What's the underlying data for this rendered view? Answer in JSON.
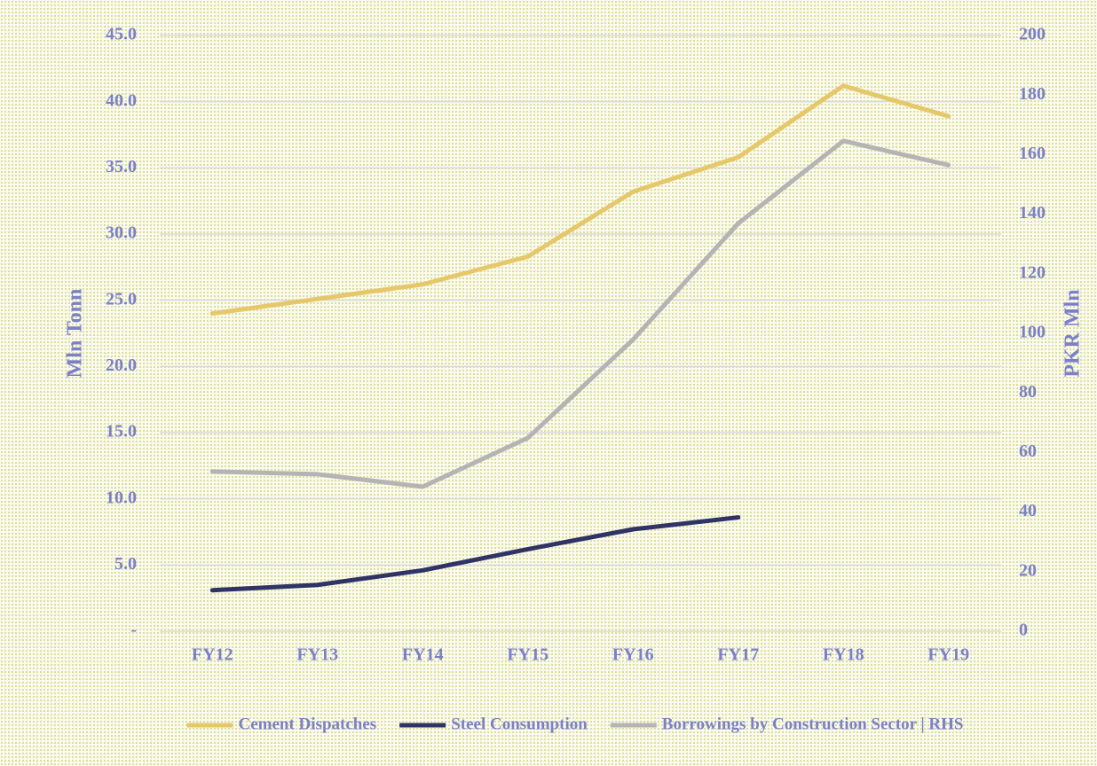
{
  "chart_data": {
    "type": "line",
    "categories": [
      "FY12",
      "FY13",
      "FY14",
      "FY15",
      "FY16",
      "FY17",
      "FY18",
      "FY19"
    ],
    "series": [
      {
        "name": "Cement Dispatches",
        "color": "#e6c86a",
        "values": [
          24.0,
          25.1,
          26.2,
          28.3,
          33.2,
          35.8,
          41.2,
          38.9
        ]
      },
      {
        "name": "Steel Consumption",
        "color": "#2f3366",
        "values": [
          3.1,
          3.5,
          4.6,
          6.2,
          7.7,
          8.6,
          null,
          null
        ]
      },
      {
        "name": "Borrowings by Construction Sector | RHS",
        "color": "#b4b4b4",
        "axis": "y2",
        "values": [
          53.6,
          52.7,
          48.5,
          64.9,
          97.9,
          136.9,
          164.6,
          156.5
        ]
      }
    ],
    "ylabel": "Mln Tonn",
    "y2label": "PKR Mln",
    "ylim": [
      0,
      45
    ],
    "yticks": [
      {
        "value": 0,
        "label": "-"
      },
      {
        "value": 5,
        "label": "5.0"
      },
      {
        "value": 10,
        "label": "10.0"
      },
      {
        "value": 15,
        "label": "15.0"
      },
      {
        "value": 20,
        "label": "20.0"
      },
      {
        "value": 25,
        "label": "25.0"
      },
      {
        "value": 30,
        "label": "30.0"
      },
      {
        "value": 35,
        "label": "35.0"
      },
      {
        "value": 40,
        "label": "40.0"
      },
      {
        "value": 45,
        "label": "45.0"
      }
    ],
    "y2lim": [
      0,
      200
    ],
    "y2ticks": [
      0,
      20,
      40,
      60,
      80,
      100,
      120,
      140,
      160,
      180,
      200
    ],
    "grid": true,
    "legend": "bottom"
  }
}
